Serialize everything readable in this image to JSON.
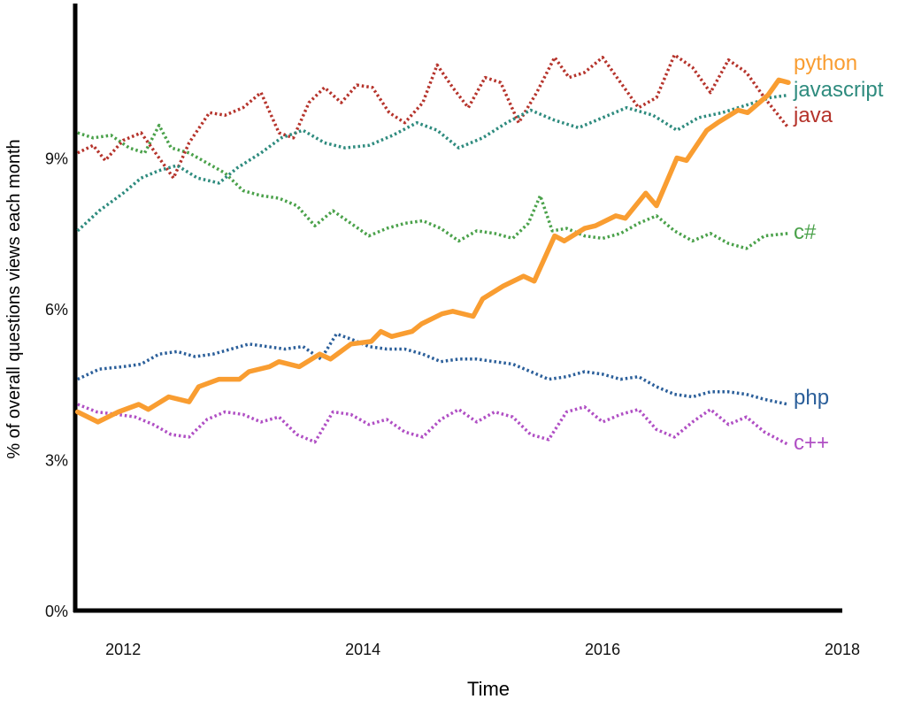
{
  "chart_data": {
    "type": "line",
    "title": "",
    "xlabel": "Time",
    "ylabel": "% of overall questions views each month",
    "xlim": [
      2011.6,
      2018.0
    ],
    "ylim": [
      0,
      12
    ],
    "xticks": [
      2012,
      2014,
      2016,
      2018
    ],
    "xtick_labels": [
      "2012",
      "2014",
      "2016",
      "2018"
    ],
    "yticks": [
      0,
      3,
      6,
      9
    ],
    "ytick_labels": [
      "0%",
      "3%",
      "6%",
      "9%"
    ],
    "grid": false,
    "legend": "inline labels at line ends (right)",
    "series": [
      {
        "name": "python",
        "color": "#f99d31",
        "style": "solid",
        "x": [
          2011.62,
          2011.79,
          2011.96,
          2012.13,
          2012.21,
          2012.38,
          2012.55,
          2012.63,
          2012.8,
          2012.97,
          2013.05,
          2013.22,
          2013.3,
          2013.47,
          2013.64,
          2013.73,
          2013.9,
          2014.07,
          2014.15,
          2014.24,
          2014.41,
          2014.49,
          2014.66,
          2014.75,
          2014.92,
          2015.0,
          2015.17,
          2015.34,
          2015.43,
          2015.6,
          2015.68,
          2015.85,
          2015.94,
          2016.11,
          2016.19,
          2016.36,
          2016.45,
          2016.62,
          2016.7,
          2016.87,
          2016.96,
          2017.13,
          2017.21,
          2017.38,
          2017.47,
          2017.55
        ],
        "y": [
          3.95,
          3.75,
          3.95,
          4.1,
          4.0,
          4.25,
          4.15,
          4.45,
          4.6,
          4.6,
          4.75,
          4.85,
          4.95,
          4.85,
          5.1,
          5.0,
          5.3,
          5.35,
          5.55,
          5.45,
          5.55,
          5.7,
          5.9,
          5.95,
          5.85,
          6.2,
          6.45,
          6.65,
          6.55,
          7.45,
          7.35,
          7.6,
          7.65,
          7.85,
          7.8,
          8.3,
          8.05,
          9.0,
          8.95,
          9.55,
          9.7,
          9.95,
          9.9,
          10.25,
          10.55,
          10.5
        ]
      },
      {
        "name": "javascript",
        "color": "#2e8b7e",
        "style": "dotted",
        "x": [
          2011.62,
          2011.8,
          2012.0,
          2012.15,
          2012.3,
          2012.45,
          2012.62,
          2012.8,
          2012.95,
          2013.15,
          2013.32,
          2013.5,
          2013.68,
          2013.85,
          2014.05,
          2014.25,
          2014.45,
          2014.62,
          2014.8,
          2015.0,
          2015.2,
          2015.4,
          2015.6,
          2015.8,
          2016.0,
          2016.2,
          2016.42,
          2016.62,
          2016.8,
          2017.0,
          2017.2,
          2017.4,
          2017.55
        ],
        "y": [
          7.55,
          7.95,
          8.3,
          8.6,
          8.75,
          8.85,
          8.6,
          8.5,
          8.8,
          9.1,
          9.4,
          9.55,
          9.3,
          9.2,
          9.25,
          9.45,
          9.7,
          9.55,
          9.2,
          9.4,
          9.7,
          9.95,
          9.75,
          9.6,
          9.8,
          10.0,
          9.85,
          9.55,
          9.8,
          9.9,
          10.05,
          10.2,
          10.25
        ]
      },
      {
        "name": "java",
        "color": "#b5332b",
        "style": "dotted",
        "x": [
          2011.62,
          2011.75,
          2011.85,
          2012.0,
          2012.15,
          2012.3,
          2012.42,
          2012.55,
          2012.72,
          2012.85,
          2013.0,
          2013.15,
          2013.3,
          2013.42,
          2013.55,
          2013.68,
          2013.82,
          2013.95,
          2014.08,
          2014.22,
          2014.35,
          2014.5,
          2014.62,
          2014.75,
          2014.88,
          2015.02,
          2015.15,
          2015.3,
          2015.45,
          2015.6,
          2015.72,
          2015.85,
          2016.0,
          2016.15,
          2016.3,
          2016.45,
          2016.6,
          2016.75,
          2016.9,
          2017.05,
          2017.2,
          2017.35,
          2017.55
        ],
        "y": [
          9.1,
          9.25,
          8.95,
          9.35,
          9.5,
          9.0,
          8.6,
          9.3,
          9.9,
          9.85,
          10.0,
          10.3,
          9.5,
          9.4,
          10.1,
          10.4,
          10.1,
          10.45,
          10.4,
          9.9,
          9.7,
          10.1,
          10.85,
          10.4,
          10.0,
          10.6,
          10.5,
          9.7,
          10.3,
          11.0,
          10.6,
          10.7,
          11.0,
          10.5,
          10.0,
          10.2,
          11.05,
          10.8,
          10.3,
          10.95,
          10.7,
          10.2,
          9.6
        ]
      },
      {
        "name": "c#",
        "color": "#4aa14a",
        "style": "dotted",
        "x": [
          2011.62,
          2011.75,
          2011.9,
          2012.05,
          2012.18,
          2012.3,
          2012.4,
          2012.55,
          2012.7,
          2012.85,
          2013.0,
          2013.15,
          2013.3,
          2013.45,
          2013.6,
          2013.75,
          2013.9,
          2014.05,
          2014.2,
          2014.35,
          2014.5,
          2014.65,
          2014.8,
          2014.95,
          2015.1,
          2015.25,
          2015.38,
          2015.48,
          2015.58,
          2015.7,
          2015.85,
          2016.0,
          2016.15,
          2016.3,
          2016.45,
          2016.6,
          2016.75,
          2016.9,
          2017.05,
          2017.2,
          2017.35,
          2017.55
        ],
        "y": [
          9.5,
          9.4,
          9.45,
          9.2,
          9.1,
          9.65,
          9.2,
          9.1,
          8.9,
          8.7,
          8.35,
          8.25,
          8.2,
          8.05,
          7.65,
          7.95,
          7.7,
          7.45,
          7.6,
          7.7,
          7.75,
          7.6,
          7.35,
          7.55,
          7.5,
          7.4,
          7.7,
          8.25,
          7.55,
          7.6,
          7.45,
          7.4,
          7.5,
          7.7,
          7.85,
          7.55,
          7.35,
          7.5,
          7.3,
          7.2,
          7.45,
          7.5
        ]
      },
      {
        "name": "php",
        "color": "#2b5f9a",
        "style": "dotted",
        "x": [
          2011.62,
          2011.8,
          2012.0,
          2012.15,
          2012.3,
          2012.45,
          2012.6,
          2012.75,
          2012.9,
          2013.05,
          2013.2,
          2013.35,
          2013.5,
          2013.65,
          2013.78,
          2013.9,
          2014.05,
          2014.2,
          2014.35,
          2014.5,
          2014.65,
          2014.8,
          2014.95,
          2015.1,
          2015.25,
          2015.4,
          2015.55,
          2015.7,
          2015.85,
          2016.0,
          2016.15,
          2016.3,
          2016.45,
          2016.6,
          2016.75,
          2016.9,
          2017.05,
          2017.2,
          2017.35,
          2017.55
        ],
        "y": [
          4.6,
          4.8,
          4.85,
          4.9,
          5.1,
          5.15,
          5.05,
          5.1,
          5.2,
          5.3,
          5.25,
          5.2,
          5.25,
          5.0,
          5.5,
          5.4,
          5.25,
          5.2,
          5.2,
          5.1,
          4.95,
          5.0,
          5.0,
          4.95,
          4.9,
          4.75,
          4.6,
          4.65,
          4.75,
          4.7,
          4.6,
          4.65,
          4.45,
          4.3,
          4.25,
          4.35,
          4.35,
          4.3,
          4.2,
          4.1
        ]
      },
      {
        "name": "c++",
        "color": "#b04fc4",
        "style": "dotted",
        "x": [
          2011.62,
          2011.78,
          2011.95,
          2012.1,
          2012.25,
          2012.4,
          2012.55,
          2012.7,
          2012.85,
          2013.0,
          2013.15,
          2013.3,
          2013.45,
          2013.6,
          2013.75,
          2013.9,
          2014.05,
          2014.2,
          2014.35,
          2014.5,
          2014.65,
          2014.8,
          2014.95,
          2015.1,
          2015.25,
          2015.4,
          2015.55,
          2015.7,
          2015.85,
          2016.0,
          2016.15,
          2016.3,
          2016.45,
          2016.6,
          2016.75,
          2016.9,
          2017.05,
          2017.2,
          2017.35,
          2017.55
        ],
        "y": [
          4.1,
          3.95,
          3.9,
          3.85,
          3.7,
          3.5,
          3.45,
          3.8,
          3.95,
          3.9,
          3.75,
          3.85,
          3.5,
          3.35,
          3.95,
          3.9,
          3.7,
          3.8,
          3.55,
          3.45,
          3.8,
          4.0,
          3.75,
          3.95,
          3.85,
          3.5,
          3.4,
          3.95,
          4.05,
          3.75,
          3.9,
          4.0,
          3.6,
          3.45,
          3.75,
          4.0,
          3.7,
          3.85,
          3.55,
          3.3
        ]
      }
    ]
  }
}
